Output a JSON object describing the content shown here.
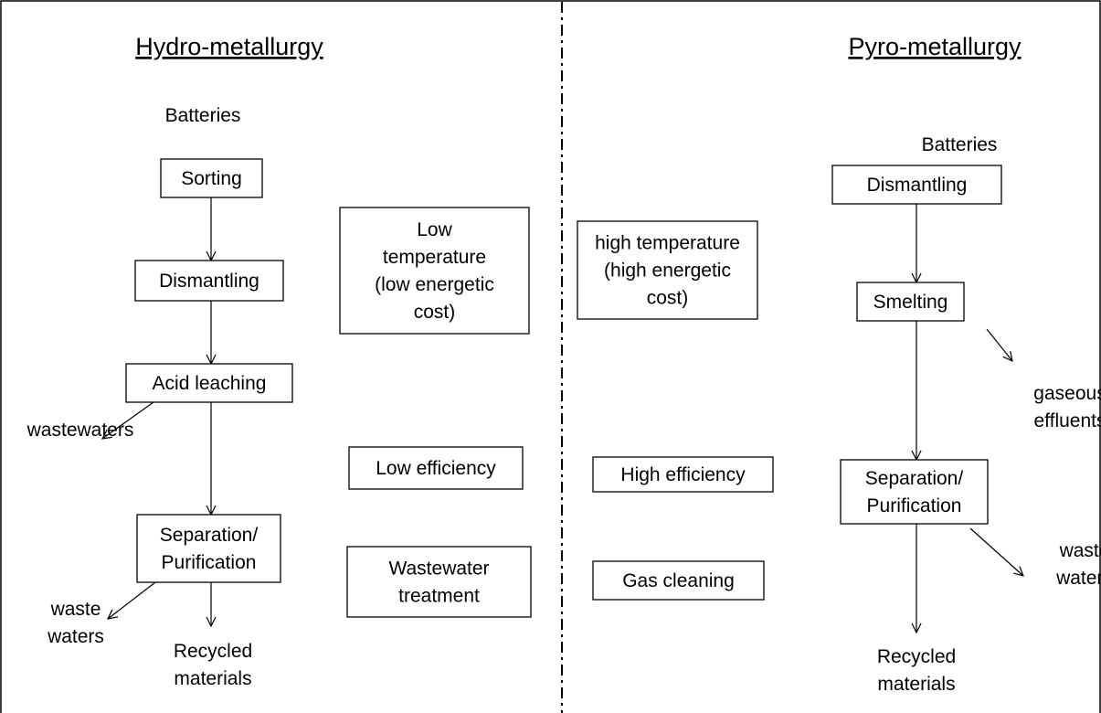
{
  "left": {
    "title": "Hydro-metallurgy",
    "input": "Batteries",
    "steps": [
      [
        "Sorting"
      ],
      [
        "Dismantling"
      ],
      [
        "Acid leaching"
      ],
      [
        "Separation/",
        "Purification"
      ]
    ],
    "outputs": [
      [
        "wastewaters"
      ],
      [
        "waste",
        "waters"
      ],
      [
        "Recycled",
        "materials"
      ]
    ],
    "features": [
      [
        "Low",
        "temperature",
        "(low energetic",
        "cost)"
      ],
      [
        "Low efficiency"
      ],
      [
        "Wastewater",
        "treatment"
      ]
    ]
  },
  "right": {
    "title": "Pyro-metallurgy",
    "input": "Batteries",
    "steps": [
      [
        "Dismantling"
      ],
      [
        "Smelting"
      ],
      [
        "Separation/",
        "Purification"
      ]
    ],
    "outputs": [
      [
        "gaseous",
        "effluents"
      ],
      [
        "waste",
        "waters"
      ],
      [
        "Recycled",
        "materials"
      ]
    ],
    "features": [
      [
        "high temperature",
        "(high energetic",
        "cost)"
      ],
      [
        "High efficiency"
      ],
      [
        "Gas cleaning"
      ]
    ]
  }
}
